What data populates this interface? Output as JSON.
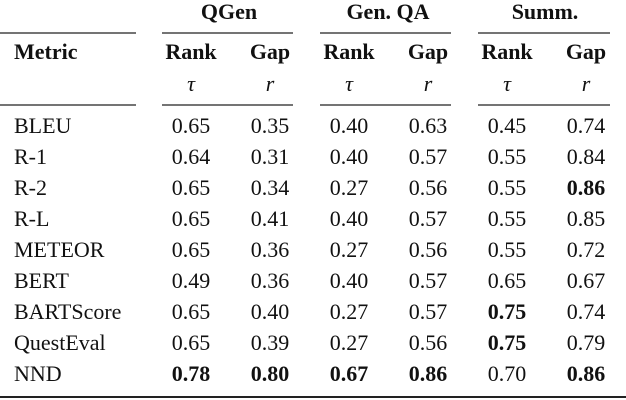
{
  "table": {
    "groups": [
      "QGen",
      "Gen. QA",
      "Summ."
    ],
    "header": [
      "Metric",
      "Rank",
      "Gap",
      "Rank",
      "Gap",
      "Rank",
      "Gap"
    ],
    "symbols": [
      "τ",
      "r",
      "τ",
      "r",
      "τ",
      "r"
    ],
    "rows": [
      {
        "metric": "BLEU",
        "values": [
          "0.65",
          "0.35",
          "0.40",
          "0.63",
          "0.45",
          "0.74"
        ],
        "bold": [
          false,
          false,
          false,
          false,
          false,
          false
        ]
      },
      {
        "metric": "R-1",
        "values": [
          "0.64",
          "0.31",
          "0.40",
          "0.57",
          "0.55",
          "0.84"
        ],
        "bold": [
          false,
          false,
          false,
          false,
          false,
          false
        ]
      },
      {
        "metric": "R-2",
        "values": [
          "0.65",
          "0.34",
          "0.27",
          "0.56",
          "0.55",
          "0.86"
        ],
        "bold": [
          false,
          false,
          false,
          false,
          false,
          true
        ]
      },
      {
        "metric": "R-L",
        "values": [
          "0.65",
          "0.41",
          "0.40",
          "0.57",
          "0.55",
          "0.85"
        ],
        "bold": [
          false,
          false,
          false,
          false,
          false,
          false
        ]
      },
      {
        "metric": "METEOR",
        "values": [
          "0.65",
          "0.36",
          "0.27",
          "0.56",
          "0.55",
          "0.72"
        ],
        "bold": [
          false,
          false,
          false,
          false,
          false,
          false
        ]
      },
      {
        "metric": "BERT",
        "values": [
          "0.49",
          "0.36",
          "0.40",
          "0.57",
          "0.65",
          "0.67"
        ],
        "bold": [
          false,
          false,
          false,
          false,
          false,
          false
        ]
      },
      {
        "metric": "BARTScore",
        "values": [
          "0.65",
          "0.40",
          "0.27",
          "0.57",
          "0.75",
          "0.74"
        ],
        "bold": [
          false,
          false,
          false,
          false,
          true,
          false
        ]
      },
      {
        "metric": "QuestEval",
        "values": [
          "0.65",
          "0.39",
          "0.27",
          "0.56",
          "0.75",
          "0.79"
        ],
        "bold": [
          false,
          false,
          false,
          false,
          true,
          false
        ]
      },
      {
        "metric": "NND",
        "values": [
          "0.78",
          "0.80",
          "0.67",
          "0.86",
          "0.70",
          "0.86"
        ],
        "bold": [
          true,
          true,
          true,
          true,
          false,
          true
        ]
      }
    ]
  }
}
